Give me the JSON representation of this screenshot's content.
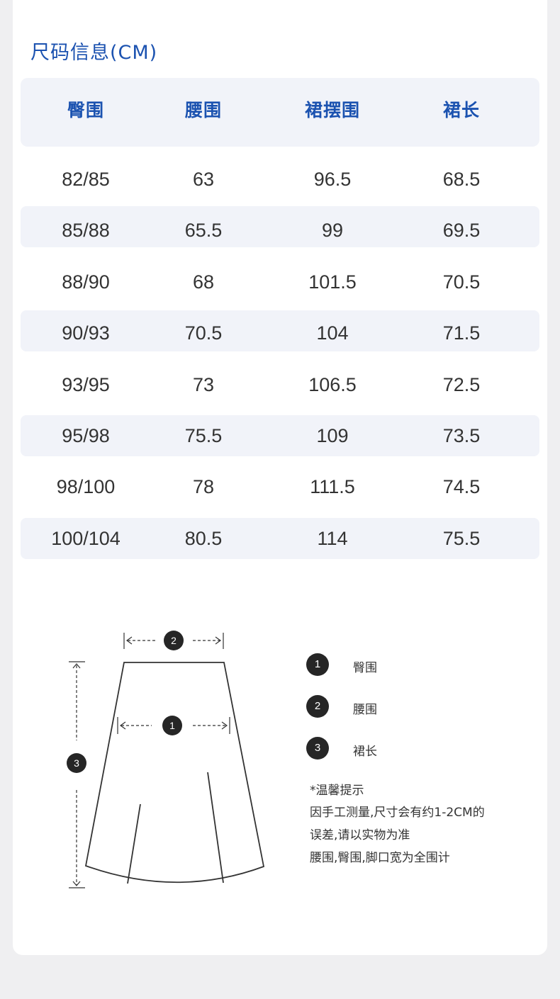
{
  "title": "尺码信息(CM)",
  "table": {
    "headers": [
      "臀围",
      "腰围",
      "裙摆围",
      "裙长"
    ],
    "rows": [
      [
        "82/85",
        "63",
        "96.5",
        "68.5"
      ],
      [
        "85/88",
        "65.5",
        "99",
        "69.5"
      ],
      [
        "88/90",
        "68",
        "101.5",
        "70.5"
      ],
      [
        "90/93",
        "70.5",
        "104",
        "71.5"
      ],
      [
        "93/95",
        "73",
        "106.5",
        "72.5"
      ],
      [
        "95/98",
        "75.5",
        "109",
        "73.5"
      ],
      [
        "98/100",
        "78",
        "111.5",
        "74.5"
      ],
      [
        "100/104",
        "80.5",
        "114",
        "75.5"
      ]
    ]
  },
  "diagram": {
    "markers": [
      "1",
      "2",
      "3"
    ]
  },
  "legend": [
    {
      "num": "1",
      "label": "臀围"
    },
    {
      "num": "2",
      "label": "腰围"
    },
    {
      "num": "3",
      "label": "裙长"
    }
  ],
  "tips": [
    "*温馨提示",
    "因手工测量,尺寸会有约1-2CM的",
    "误差,请以实物为准",
    "腰围,臀围,脚口宽为全围计"
  ],
  "colors": {
    "accent": "#1b52b0",
    "band": "#f1f3f9",
    "marker": "#262626",
    "background": "#efeff1"
  }
}
